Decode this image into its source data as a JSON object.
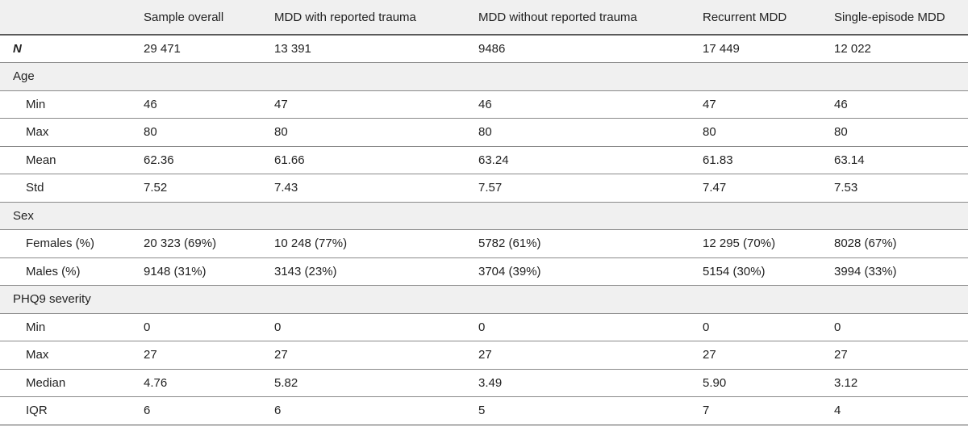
{
  "table": {
    "columns": [
      "",
      "Sample overall",
      "MDD with reported trauma",
      "MDD without reported trauma",
      "Recurrent MDD",
      "Single-episode MDD"
    ],
    "rows": [
      {
        "label": "N",
        "values": [
          "29 471",
          "13 391",
          "9486",
          "17 449",
          "12 022"
        ]
      },
      {
        "label": "Age",
        "section": true
      },
      {
        "label": "Min",
        "values": [
          "46",
          "47",
          "46",
          "47",
          "46"
        ]
      },
      {
        "label": "Max",
        "values": [
          "80",
          "80",
          "80",
          "80",
          "80"
        ]
      },
      {
        "label": "Mean",
        "values": [
          "62.36",
          "61.66",
          "63.24",
          "61.83",
          "63.14"
        ]
      },
      {
        "label": "Std",
        "values": [
          "7.52",
          "7.43",
          "7.57",
          "7.47",
          "7.53"
        ]
      },
      {
        "label": "Sex",
        "section": true
      },
      {
        "label": "Females (%)",
        "values": [
          "20 323 (69%)",
          "10 248 (77%)",
          "5782 (61%)",
          "12 295 (70%)",
          "8028 (67%)"
        ]
      },
      {
        "label": "Males (%)",
        "values": [
          "9148 (31%)",
          "3143 (23%)",
          "3704 (39%)",
          "5154 (30%)",
          "3994 (33%)"
        ]
      },
      {
        "label": "PHQ9 severity",
        "section": true
      },
      {
        "label": "Min",
        "values": [
          "0",
          "0",
          "0",
          "0",
          "0"
        ]
      },
      {
        "label": "Max",
        "values": [
          "27",
          "27",
          "27",
          "27",
          "27"
        ]
      },
      {
        "label": "Median",
        "values": [
          "4.76",
          "5.82",
          "3.49",
          "5.90",
          "3.12"
        ]
      },
      {
        "label": "IQR",
        "values": [
          "6",
          "6",
          "5",
          "7",
          "4"
        ]
      }
    ]
  }
}
